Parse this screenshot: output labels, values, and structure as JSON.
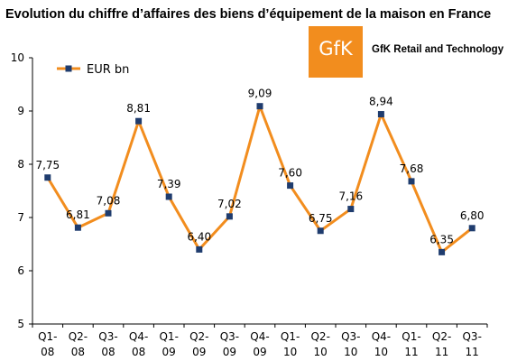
{
  "header": {
    "title": "Evolution du chiffre d’affaires des biens d’équipement de la maison en France",
    "logo_text": "GfK",
    "brand_text": "GfK Retail and Technology"
  },
  "colors": {
    "line": "#f28d1e",
    "marker": "#1f3c6e",
    "logo": "#f28d1e"
  },
  "chart_data": {
    "type": "line",
    "title": "Evolution du chiffre d’affaires des biens d’équipement de la maison en France",
    "xlabel": "",
    "ylabel": "",
    "ylim": [
      5,
      10
    ],
    "yticks": [
      "5",
      "6",
      "7",
      "8",
      "9",
      "10"
    ],
    "grid": false,
    "legend": "top-left",
    "categories": [
      [
        "Q1-",
        "08"
      ],
      [
        "Q2-",
        "08"
      ],
      [
        "Q3-",
        "08"
      ],
      [
        "Q4-",
        "08"
      ],
      [
        "Q1-",
        "09"
      ],
      [
        "Q2-",
        "09"
      ],
      [
        "Q3-",
        "09"
      ],
      [
        "Q4-",
        "09"
      ],
      [
        "Q1-",
        "10"
      ],
      [
        "Q2-",
        "10"
      ],
      [
        "Q3-",
        "10"
      ],
      [
        "Q4-",
        "10"
      ],
      [
        "Q1-",
        "11"
      ],
      [
        "Q2-",
        "11"
      ],
      [
        "Q3-",
        "11"
      ]
    ],
    "series": [
      {
        "name": "EUR bn",
        "values": [
          7.75,
          6.81,
          7.08,
          8.81,
          7.39,
          6.4,
          7.02,
          9.09,
          7.6,
          6.75,
          7.16,
          8.94,
          7.68,
          6.35,
          6.8
        ],
        "labels": [
          "7,75",
          "6,81",
          "7,08",
          "8,81",
          "7,39",
          "6,40",
          "7,02",
          "9,09",
          "7,60",
          "6,75",
          "7,16",
          "8,94",
          "7,68",
          "6,35",
          "6,80"
        ]
      }
    ]
  }
}
